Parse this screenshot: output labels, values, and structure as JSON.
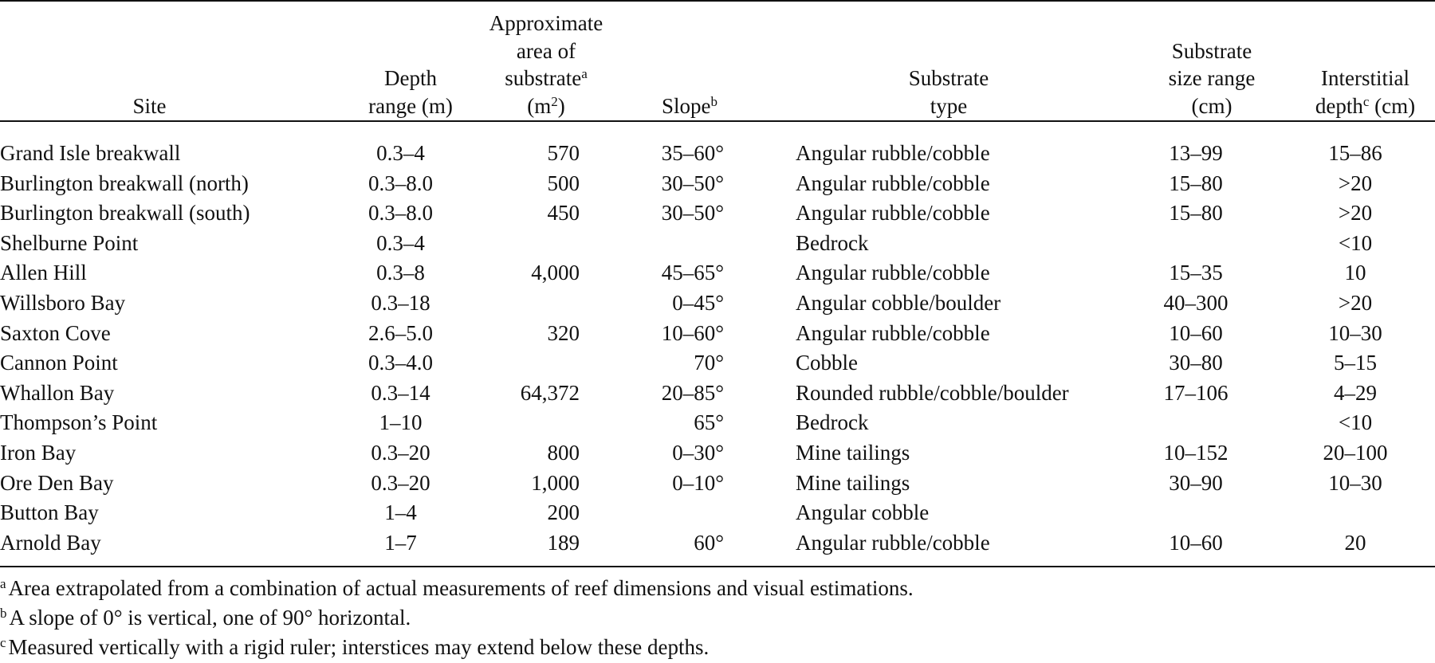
{
  "headers": {
    "site": [
      "Site"
    ],
    "depth": [
      "Depth",
      "range (m)"
    ],
    "area": [
      "Approximate",
      "area of",
      "substrate",
      "(m",
      ")"
    ],
    "area_sup": "a",
    "area_exp": "2",
    "slope": [
      "Slope"
    ],
    "slope_sup": "b",
    "type": [
      "Substrate",
      "type"
    ],
    "size": [
      "Substrate",
      "size range",
      "(cm)"
    ],
    "inter": [
      "Interstitial",
      "depth",
      " (cm)"
    ],
    "inter_sup": "c"
  },
  "rows": [
    {
      "site": "Grand Isle breakwall",
      "depth": "0.3–4",
      "area": "570",
      "slope": "35–60°",
      "type": "Angular rubble/cobble",
      "size": "13–99",
      "inter": "15–86"
    },
    {
      "site": "Burlington breakwall (north)",
      "depth": "0.3–8.0",
      "area": "500",
      "slope": "30–50°",
      "type": "Angular rubble/cobble",
      "size": "15–80",
      "inter": ">20"
    },
    {
      "site": "Burlington breakwall (south)",
      "depth": "0.3–8.0",
      "area": "450",
      "slope": "30–50°",
      "type": "Angular rubble/cobble",
      "size": "15–80",
      "inter": ">20"
    },
    {
      "site": "Shelburne Point",
      "depth": "0.3–4",
      "area": "",
      "slope": "",
      "type": "Bedrock",
      "size": "",
      "inter": "<10"
    },
    {
      "site": "Allen Hill",
      "depth": "0.3–8",
      "area": "4,000",
      "slope": "45–65°",
      "type": "Angular rubble/cobble",
      "size": "15–35",
      "inter": "10"
    },
    {
      "site": "Willsboro Bay",
      "depth": "0.3–18",
      "area": "",
      "slope": "0–45°",
      "type": "Angular cobble/boulder",
      "size": "40–300",
      "inter": ">20"
    },
    {
      "site": "Saxton Cove",
      "depth": "2.6–5.0",
      "area": "320",
      "slope": "10–60°",
      "type": "Angular rubble/cobble",
      "size": "10–60",
      "inter": "10–30"
    },
    {
      "site": "Cannon Point",
      "depth": "0.3–4.0",
      "area": "",
      "slope": "70°",
      "type": "Cobble",
      "size": "30–80",
      "inter": "5–15"
    },
    {
      "site": "Whallon Bay",
      "depth": "0.3–14",
      "area": "64,372",
      "slope": "20–85°",
      "type": "Rounded rubble/cobble/boulder",
      "size": "17–106",
      "inter": "4–29"
    },
    {
      "site": "Thompson’s Point",
      "depth": "1–10",
      "area": "",
      "slope": "65°",
      "type": "Bedrock",
      "size": "",
      "inter": "<10"
    },
    {
      "site": "Iron Bay",
      "depth": "0.3–20",
      "area": "800",
      "slope": "0–30°",
      "type": "Mine tailings",
      "size": "10–152",
      "inter": "20–100"
    },
    {
      "site": "Ore Den Bay",
      "depth": "0.3–20",
      "area": "1,000",
      "slope": "0–10°",
      "type": "Mine tailings",
      "size": "30–90",
      "inter": "10–30"
    },
    {
      "site": "Button Bay",
      "depth": "1–4",
      "area": "200",
      "slope": "",
      "type": "Angular cobble",
      "size": "",
      "inter": ""
    },
    {
      "site": "Arnold Bay",
      "depth": "1–7",
      "area": "189",
      "slope": "60°",
      "type": "Angular rubble/cobble",
      "size": "10–60",
      "inter": "20"
    }
  ],
  "footnotes": [
    {
      "mark": "a",
      "text": "Area extrapolated from a combination of actual measurements of reef dimensions and visual estimations."
    },
    {
      "mark": "b",
      "text": "A slope of 0° is vertical, one of 90° horizontal."
    },
    {
      "mark": "c",
      "text": "Measured vertically with a rigid ruler; interstices may extend below these depths."
    }
  ]
}
